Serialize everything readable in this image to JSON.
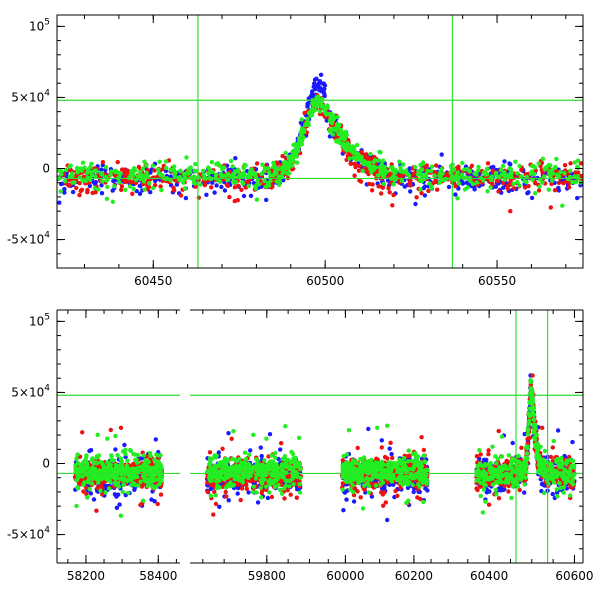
{
  "chart_data": [
    {
      "type": "scatter",
      "title": "",
      "xlabel": "",
      "ylabel": "",
      "xlim": [
        60422,
        60575
      ],
      "ylim": [
        -70000,
        108000
      ],
      "x_ticks": [
        {
          "value": 60450,
          "label": "60450"
        },
        {
          "value": 60500,
          "label": "60500"
        },
        {
          "value": 60550,
          "label": "60550"
        }
      ],
      "y_ticks": [
        {
          "value": 100000,
          "label": "10",
          "exp": "5"
        },
        {
          "value": 50000,
          "label": "5×10",
          "exp": "4"
        },
        {
          "value": 0,
          "label": "0",
          "exp": ""
        },
        {
          "value": -50000,
          "label": "-5×10",
          "exp": "4"
        }
      ],
      "guide_lines": {
        "vertical": [
          60463,
          60537
        ],
        "horizontal": [
          48000,
          -7000
        ],
        "color": "#33dd33"
      },
      "colors": {
        "blue": "#1a1aff",
        "red": "#ee1111",
        "green": "#22ee22"
      },
      "series": [
        {
          "color": "blue",
          "clusters": [
            [
              60422,
              60575,
              2.0
            ],
            [
              60483,
              60497,
              52
            ],
            [
              60495,
              60500,
              72
            ]
          ]
        },
        {
          "color": "red",
          "clusters": [
            [
              60422,
              60575,
              -4.0
            ],
            [
              60492,
              60512,
              38
            ],
            [
              60510,
              60520,
              -18
            ]
          ]
        },
        {
          "color": "green",
          "clusters": [
            [
              60422,
              60575,
              -3.0
            ],
            [
              60490,
              60510,
              35
            ]
          ]
        }
      ]
    },
    {
      "type": "scatter",
      "title": "",
      "xlabel": "",
      "ylabel": "",
      "segments": [
        {
          "xlim": [
            58120,
            58460
          ],
          "x_ticks": [
            {
              "value": 58200,
              "label": "58200"
            },
            {
              "value": 58400,
              "label": "58400"
            }
          ]
        },
        {
          "xlim": [
            59620,
            59920
          ],
          "x_ticks": [
            {
              "value": 59800,
              "label": "59800"
            }
          ]
        },
        {
          "xlim": [
            59920,
            60320
          ],
          "x_ticks": [
            {
              "value": 60000,
              "label": "60000"
            },
            {
              "value": 60200,
              "label": "60200"
            }
          ]
        },
        {
          "xlim": [
            60320,
            60620
          ],
          "x_ticks": [
            {
              "value": 60400,
              "label": "60400"
            },
            {
              "value": 60600,
              "label": "60600"
            }
          ]
        }
      ],
      "ylim": [
        -70000,
        108000
      ],
      "y_ticks": [
        {
          "value": 100000,
          "label": "10",
          "exp": "5"
        },
        {
          "value": 50000,
          "label": "5×10",
          "exp": "4"
        },
        {
          "value": 0,
          "label": "0",
          "exp": ""
        },
        {
          "value": -50000,
          "label": "-5×10",
          "exp": "4"
        }
      ],
      "guide_lines": {
        "vertical": [
          60463,
          60537
        ],
        "horizontal": [
          48000,
          -7000
        ],
        "color": "#33dd33"
      },
      "observing_seasons": [
        [
          58170,
          58410
        ],
        [
          59660,
          59880
        ],
        [
          59990,
          60240
        ],
        [
          60370,
          60600
        ]
      ],
      "peak": {
        "x": 60498,
        "y": 75000
      }
    }
  ]
}
